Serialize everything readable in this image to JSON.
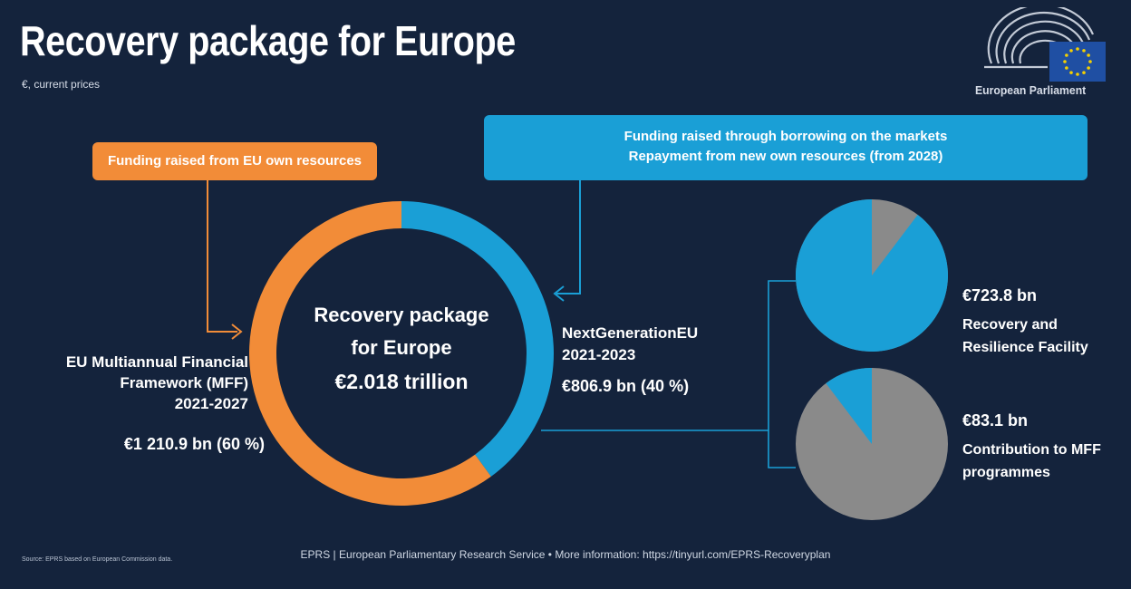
{
  "header": {
    "title": "Recovery package for Europe",
    "subtitle": "€, current prices",
    "logo_text": "European Parliament"
  },
  "callouts": {
    "own_resources": "Funding raised from EU own resources",
    "borrowing_line1": "Funding raised through borrowing on the markets",
    "borrowing_line2": "Repayment from new own resources (from 2028)"
  },
  "center": {
    "label_line1": "Recovery package",
    "label_line2": "for Europe",
    "total": "€2.018 trillion"
  },
  "mff": {
    "line1": "EU Multiannual Financial",
    "line2": "Framework (MFF)",
    "line3": "2021-2027",
    "value": "€1 210.9 bn (60 %)"
  },
  "ngeu": {
    "line1": "NextGenerationEU",
    "line2": "2021-2023",
    "value": "€806.9 bn (40 %)"
  },
  "rrf": {
    "value": "€723.8 bn",
    "line1": "Recovery and",
    "line2": "Resilience Facility"
  },
  "mff_contribution": {
    "value": "€83.1 bn",
    "line1": "Contribution to MFF",
    "line2": "programmes"
  },
  "footer": {
    "source": "Source: EPRS based on European Commission data.",
    "credit": "EPRS | European Parliamentary Research Service • More information: https://tinyurl.com/EPRS-Recoveryplan"
  },
  "colors": {
    "background": "#14233c",
    "orange": "#f28c38",
    "blue": "#1a9fd6",
    "grey": "#8a8a8a",
    "eu_flag": "#1f4fa3",
    "eu_stars": "#f5d000"
  },
  "chart_data": [
    {
      "type": "pie",
      "subtype": "donut",
      "total": 2017.8,
      "unit": "€ bn",
      "slices": [
        {
          "name": "EU Multiannual Financial Framework (MFF) 2021-2027",
          "value": 1210.9,
          "percent": 60,
          "color": "#f28c38"
        },
        {
          "name": "NextGenerationEU 2021-2023",
          "value": 806.9,
          "percent": 40,
          "color": "#1a9fd6"
        }
      ]
    },
    {
      "type": "pie",
      "highlight": "Recovery and Resilience Facility",
      "slices": [
        {
          "name": "Recovery and Resilience Facility",
          "value": 723.8,
          "color": "#1a9fd6"
        },
        {
          "name": "Contribution to MFF programmes",
          "value": 83.1,
          "color": "#8a8a8a"
        }
      ]
    },
    {
      "type": "pie",
      "highlight": "Contribution to MFF programmes",
      "slices": [
        {
          "name": "Recovery and Resilience Facility",
          "value": 723.8,
          "color": "#8a8a8a"
        },
        {
          "name": "Contribution to MFF programmes",
          "value": 83.1,
          "color": "#1a9fd6"
        }
      ]
    }
  ]
}
